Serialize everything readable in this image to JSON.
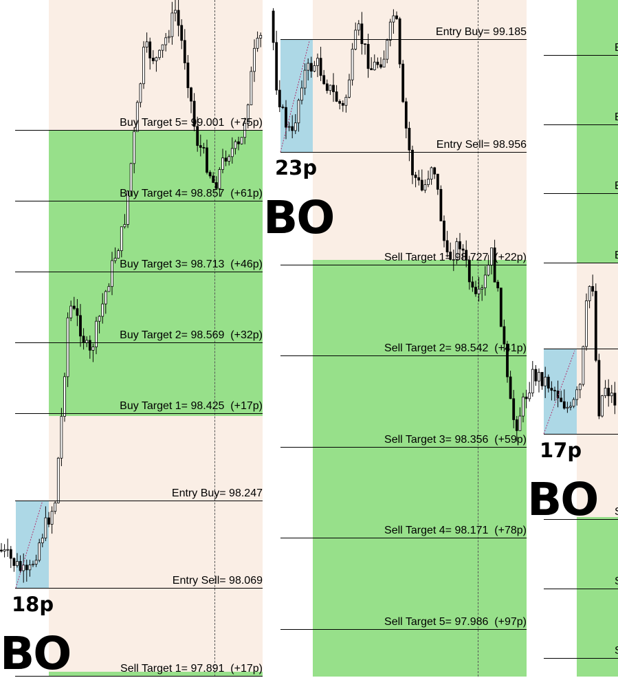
{
  "colors": {
    "neutral_zone": "#faeee5",
    "target_zone": "#97e08a",
    "breakout_box": "#add8e6",
    "line": "#000000"
  },
  "panels": [
    {
      "levels": [
        {
          "label": "Buy Target 5= 99.001  (+75p)"
        },
        {
          "label": "Buy Target 4= 98.857  (+61p)"
        },
        {
          "label": "Buy Target 3= 98.713  (+46p)"
        },
        {
          "label": "Buy Target 2= 98.569  (+32p)"
        },
        {
          "label": "Buy Target 1= 98.425  (+17p)"
        },
        {
          "label": "Entry Buy= 98.247"
        },
        {
          "label": "Entry Sell= 98.069"
        },
        {
          "label": "Sell Target 1= 97.891  (+17p)"
        }
      ],
      "range_pips": "18p",
      "tag": "BO"
    },
    {
      "levels": [
        {
          "label": "Entry Buy= 99.185"
        },
        {
          "label": "Entry Sell= 98.956"
        },
        {
          "label": "Sell Target 1= 98.727  (+22p)"
        },
        {
          "label": "Sell Target 2= 98.542  (+41p)"
        },
        {
          "label": "Sell Target 3= 98.356  (+59p)"
        },
        {
          "label": "Sell Target 4= 98.171  (+78p)"
        },
        {
          "label": "Sell Target 5= 97.986  (+97p)"
        }
      ],
      "range_pips": "23p",
      "tag": "BO"
    },
    {
      "levels": [
        {
          "label": "B"
        },
        {
          "label": "B"
        },
        {
          "label": "B"
        },
        {
          "label": "B"
        },
        {
          "label": ""
        },
        {
          "label": ""
        },
        {
          "label": "S"
        },
        {
          "label": "S"
        },
        {
          "label": "S"
        }
      ],
      "range_pips": "17p",
      "tag": "BO"
    }
  ]
}
